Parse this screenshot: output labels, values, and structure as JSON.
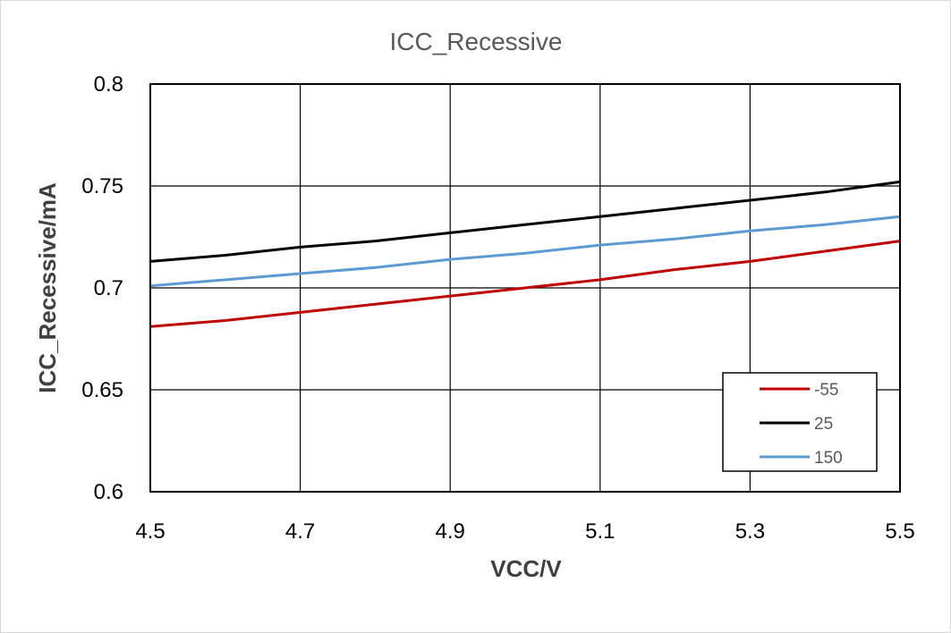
{
  "chart_data": {
    "type": "line",
    "title": "ICC_Recessive",
    "xlabel": "VCC/V",
    "ylabel": "ICC_Recessive/mA",
    "xlim": [
      4.5,
      5.5
    ],
    "ylim": [
      0.6,
      0.8
    ],
    "xticks": [
      "4.5",
      "4.7",
      "4.9",
      "5.1",
      "5.3",
      "5.5"
    ],
    "yticks": [
      "0.6",
      "0.65",
      "0.7",
      "0.75",
      "0.8"
    ],
    "grid": true,
    "legend_position": "bottom-right",
    "series": [
      {
        "name": "-55",
        "color": "#c00000",
        "x": [
          4.5,
          4.6,
          4.7,
          4.8,
          4.9,
          5.0,
          5.1,
          5.2,
          5.3,
          5.4,
          5.5
        ],
        "y": [
          0.681,
          0.684,
          0.688,
          0.692,
          0.696,
          0.7,
          0.704,
          0.709,
          0.713,
          0.718,
          0.723
        ]
      },
      {
        "name": "25",
        "color": "#000000",
        "x": [
          4.5,
          4.6,
          4.7,
          4.8,
          4.9,
          5.0,
          5.1,
          5.2,
          5.3,
          5.4,
          5.5
        ],
        "y": [
          0.713,
          0.716,
          0.72,
          0.723,
          0.727,
          0.731,
          0.735,
          0.739,
          0.743,
          0.747,
          0.752
        ]
      },
      {
        "name": "150",
        "color": "#5b9bd5",
        "x": [
          4.5,
          4.6,
          4.7,
          4.8,
          4.9,
          5.0,
          5.1,
          5.2,
          5.3,
          5.4,
          5.5
        ],
        "y": [
          0.701,
          0.704,
          0.707,
          0.71,
          0.714,
          0.717,
          0.721,
          0.724,
          0.728,
          0.731,
          0.735
        ]
      }
    ]
  }
}
